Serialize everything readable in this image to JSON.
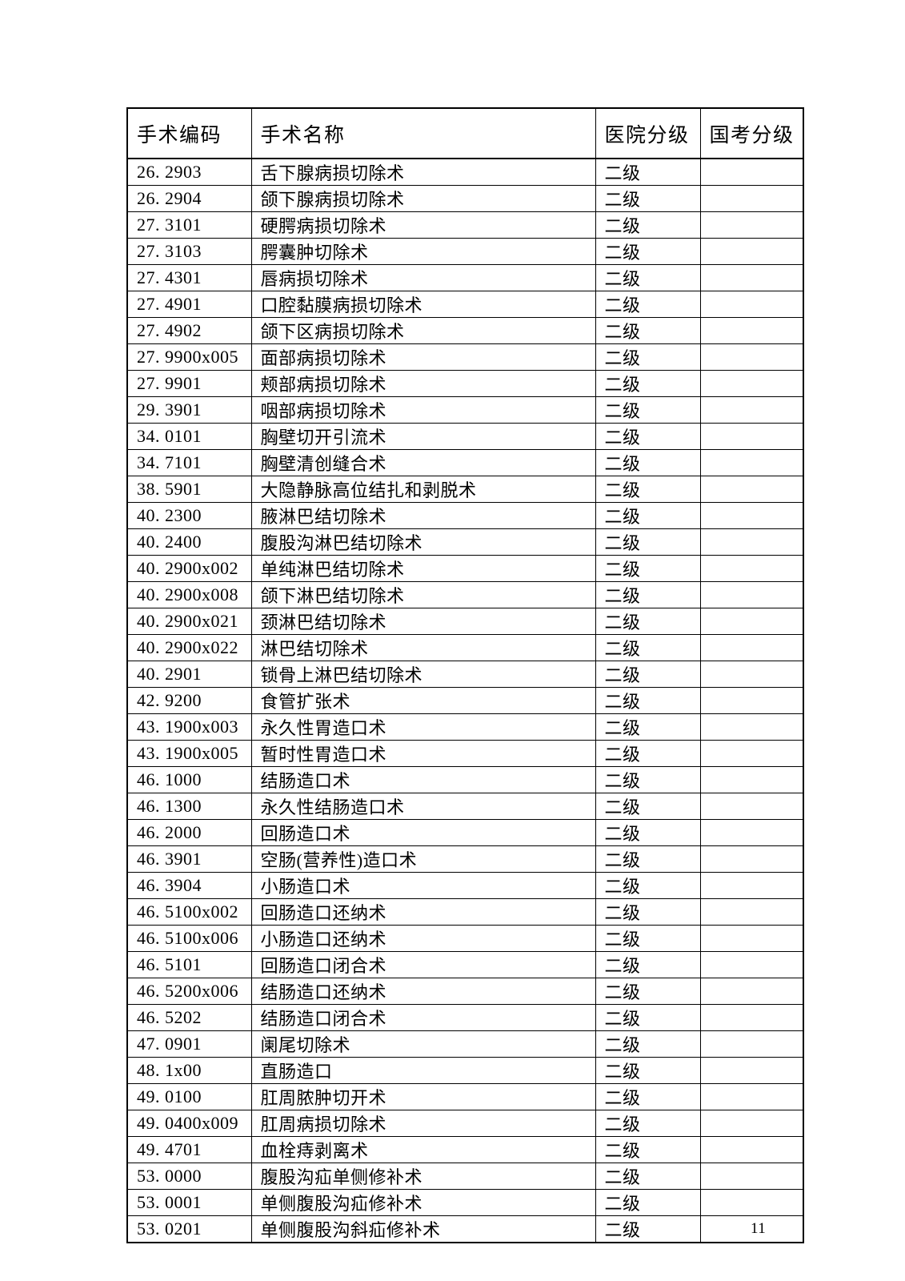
{
  "page": {
    "background_color": "#ffffff",
    "text_color": "#000000",
    "border_color": "#000000",
    "page_number": "11"
  },
  "table": {
    "headers": [
      {
        "key": "code",
        "name": "header-surgery-code",
        "label": "手术编码"
      },
      {
        "key": "name",
        "name": "header-surgery-name",
        "label": "手术名称"
      },
      {
        "key": "hospital_level",
        "name": "header-hospital-level",
        "label": "医院分级"
      },
      {
        "key": "national_exam_level",
        "name": "header-national-exam-level",
        "label": "国考分级"
      }
    ],
    "rows": [
      {
        "code": "26. 2903",
        "name": "舌下腺病损切除术",
        "hospital_level": "二级",
        "national_exam_level": ""
      },
      {
        "code": "26. 2904",
        "name": "颌下腺病损切除术",
        "hospital_level": "二级",
        "national_exam_level": ""
      },
      {
        "code": "27. 3101",
        "name": "硬腭病损切除术",
        "hospital_level": "二级",
        "national_exam_level": ""
      },
      {
        "code": "27. 3103",
        "name": "腭囊肿切除术",
        "hospital_level": "二级",
        "national_exam_level": ""
      },
      {
        "code": "27. 4301",
        "name": "唇病损切除术",
        "hospital_level": "二级",
        "national_exam_level": ""
      },
      {
        "code": "27. 4901",
        "name": "口腔黏膜病损切除术",
        "hospital_level": "二级",
        "national_exam_level": ""
      },
      {
        "code": "27. 4902",
        "name": "颌下区病损切除术",
        "hospital_level": "二级",
        "national_exam_level": ""
      },
      {
        "code": "27. 9900x005",
        "name": "面部病损切除术",
        "hospital_level": "二级",
        "national_exam_level": ""
      },
      {
        "code": "27. 9901",
        "name": "颊部病损切除术",
        "hospital_level": "二级",
        "national_exam_level": ""
      },
      {
        "code": "29. 3901",
        "name": "咽部病损切除术",
        "hospital_level": "二级",
        "national_exam_level": ""
      },
      {
        "code": "34. 0101",
        "name": "胸壁切开引流术",
        "hospital_level": "二级",
        "national_exam_level": ""
      },
      {
        "code": "34. 7101",
        "name": "胸壁清创缝合术",
        "hospital_level": "二级",
        "national_exam_level": ""
      },
      {
        "code": "38. 5901",
        "name": "大隐静脉高位结扎和剥脱术",
        "hospital_level": "二级",
        "national_exam_level": ""
      },
      {
        "code": "40. 2300",
        "name": "腋淋巴结切除术",
        "hospital_level": "二级",
        "national_exam_level": ""
      },
      {
        "code": "40. 2400",
        "name": "腹股沟淋巴结切除术",
        "hospital_level": "二级",
        "national_exam_level": ""
      },
      {
        "code": "40. 2900x002",
        "name": "单纯淋巴结切除术",
        "hospital_level": "二级",
        "national_exam_level": ""
      },
      {
        "code": "40. 2900x008",
        "name": "颌下淋巴结切除术",
        "hospital_level": "二级",
        "national_exam_level": ""
      },
      {
        "code": "40. 2900x021",
        "name": "颈淋巴结切除术",
        "hospital_level": "二级",
        "national_exam_level": ""
      },
      {
        "code": "40. 2900x022",
        "name": "淋巴结切除术",
        "hospital_level": "二级",
        "national_exam_level": ""
      },
      {
        "code": "40. 2901",
        "name": "锁骨上淋巴结切除术",
        "hospital_level": "二级",
        "national_exam_level": ""
      },
      {
        "code": "42. 9200",
        "name": "食管扩张术",
        "hospital_level": "二级",
        "national_exam_level": ""
      },
      {
        "code": "43. 1900x003",
        "name": "永久性胃造口术",
        "hospital_level": "二级",
        "national_exam_level": ""
      },
      {
        "code": "43. 1900x005",
        "name": "暂时性胃造口术",
        "hospital_level": "二级",
        "national_exam_level": ""
      },
      {
        "code": "46. 1000",
        "name": "结肠造口术",
        "hospital_level": "二级",
        "national_exam_level": ""
      },
      {
        "code": "46. 1300",
        "name": "永久性结肠造口术",
        "hospital_level": "二级",
        "national_exam_level": ""
      },
      {
        "code": "46. 2000",
        "name": "回肠造口术",
        "hospital_level": "二级",
        "national_exam_level": ""
      },
      {
        "code": "46. 3901",
        "name": "空肠(营养性)造口术",
        "hospital_level": "二级",
        "national_exam_level": ""
      },
      {
        "code": "46. 3904",
        "name": "小肠造口术",
        "hospital_level": "二级",
        "national_exam_level": ""
      },
      {
        "code": "46. 5100x002",
        "name": "回肠造口还纳术",
        "hospital_level": "二级",
        "national_exam_level": ""
      },
      {
        "code": "46. 5100x006",
        "name": "小肠造口还纳术",
        "hospital_level": "二级",
        "national_exam_level": ""
      },
      {
        "code": "46. 5101",
        "name": "回肠造口闭合术",
        "hospital_level": "二级",
        "national_exam_level": ""
      },
      {
        "code": "46. 5200x006",
        "name": "结肠造口还纳术",
        "hospital_level": "二级",
        "national_exam_level": ""
      },
      {
        "code": "46. 5202",
        "name": "结肠造口闭合术",
        "hospital_level": "二级",
        "national_exam_level": ""
      },
      {
        "code": "47. 0901",
        "name": "阑尾切除术",
        "hospital_level": "二级",
        "national_exam_level": ""
      },
      {
        "code": "48. 1x00",
        "name": "直肠造口",
        "hospital_level": "二级",
        "national_exam_level": ""
      },
      {
        "code": "49. 0100",
        "name": "肛周脓肿切开术",
        "hospital_level": "二级",
        "national_exam_level": ""
      },
      {
        "code": "49. 0400x009",
        "name": "肛周病损切除术",
        "hospital_level": "二级",
        "national_exam_level": ""
      },
      {
        "code": "49. 4701",
        "name": "血栓痔剥离术",
        "hospital_level": "二级",
        "national_exam_level": ""
      },
      {
        "code": "53. 0000",
        "name": "腹股沟疝单侧修补术",
        "hospital_level": "二级",
        "national_exam_level": ""
      },
      {
        "code": "53. 0001",
        "name": "单侧腹股沟疝修补术",
        "hospital_level": "二级",
        "national_exam_level": ""
      },
      {
        "code": "53. 0201",
        "name": "单侧腹股沟斜疝修补术",
        "hospital_level": "二级",
        "national_exam_level": ""
      }
    ]
  }
}
